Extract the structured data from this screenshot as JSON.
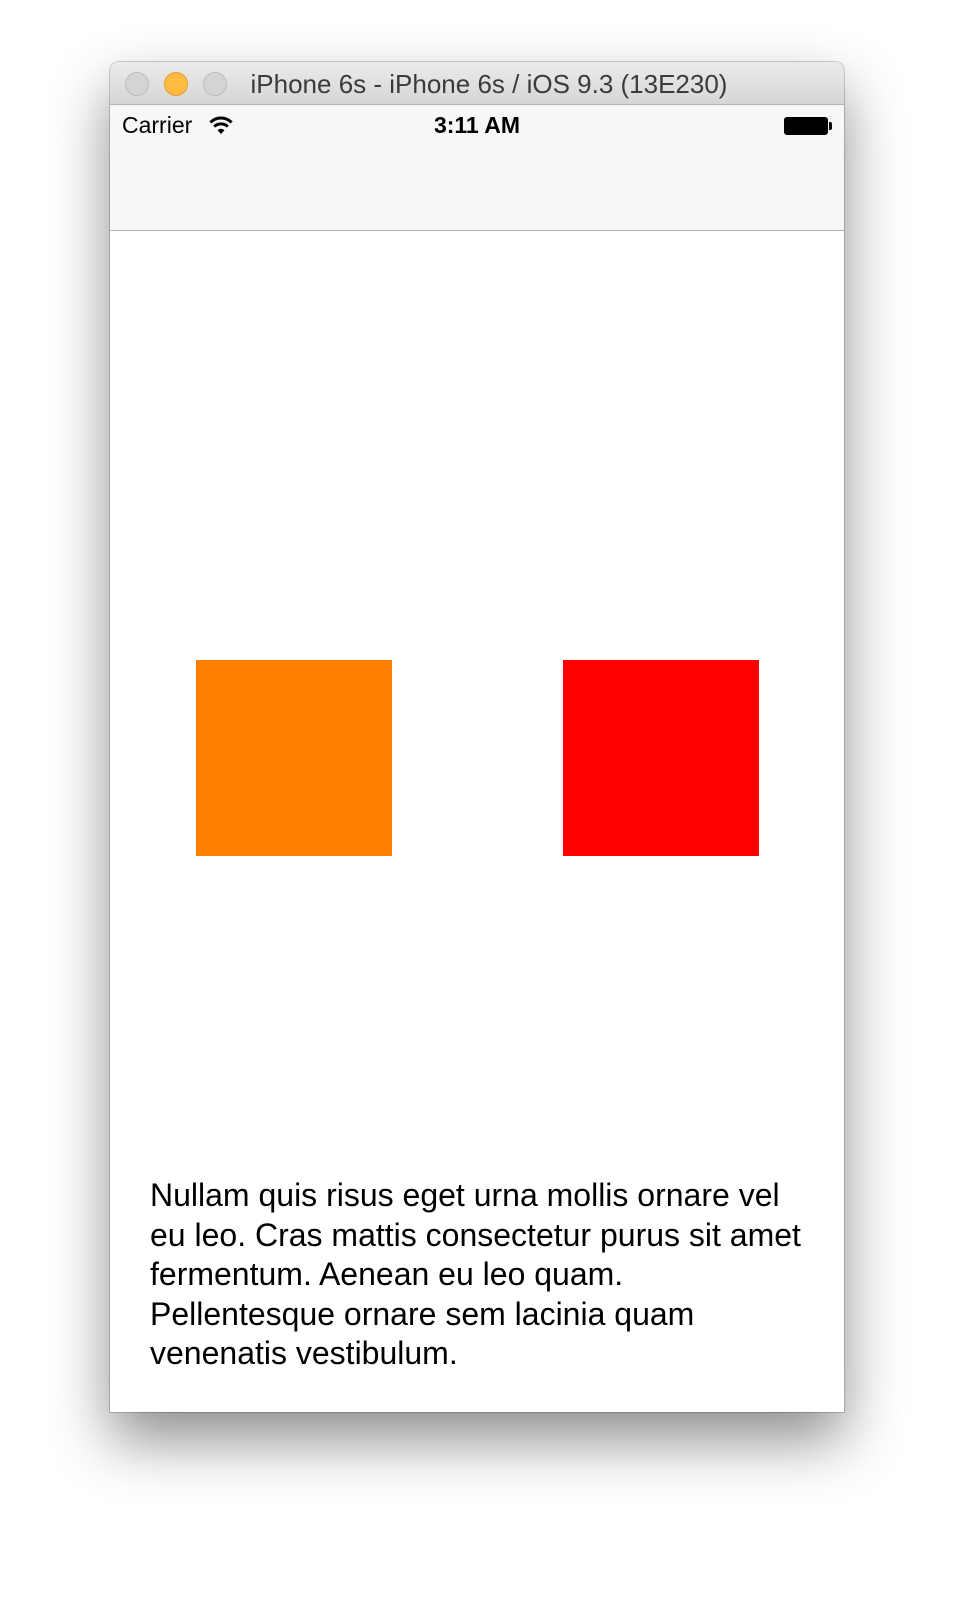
{
  "window": {
    "title": "iPhone 6s - iPhone 6s / iOS 9.3 (13E230)"
  },
  "status_bar": {
    "carrier": "Carrier",
    "time": "3:11 AM",
    "wifi_icon": "wifi-icon",
    "battery_icon": "battery-icon"
  },
  "content": {
    "squares": [
      {
        "color": "#ff8000"
      },
      {
        "color": "#ff0000"
      }
    ],
    "paragraph": "Nullam quis risus eget urna mollis ornare vel eu leo. Cras mattis consectetur purus sit amet fermentum. Aenean eu leo quam. Pellentesque ornare sem lacinia quam venenatis vestibulum."
  },
  "colors": {
    "window_minimize": "#fdbc40",
    "inactive_button": "#d4d4d4"
  }
}
